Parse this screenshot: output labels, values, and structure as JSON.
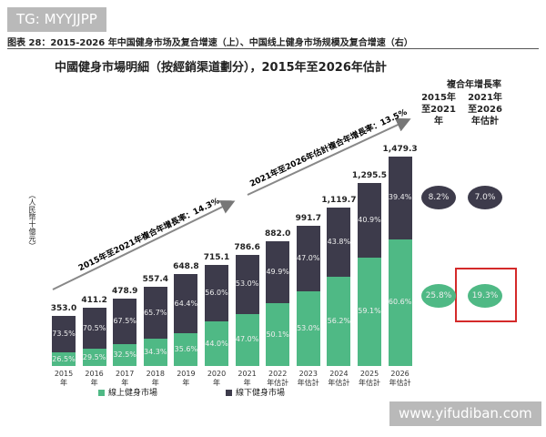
{
  "header": {
    "watermark": "TG: MYYJJPP",
    "caption": "图表 28：2015-2026 年中国健身市场及复合增速（上）、中国线上健身市场规模及复合增速（右）"
  },
  "chart_data": {
    "type": "stacked_bar",
    "title": "中國健身市場明細（按經銷渠道劃分），2015年至2026年估計",
    "y_label": "（人民幣十億元）",
    "categories": [
      "2015年",
      "2016年",
      "2017年",
      "2018年",
      "2019年",
      "2020年",
      "2021年",
      "2022年估計",
      "2023年估計",
      "2024年估計",
      "2025年估計",
      "2026年估計"
    ],
    "totals": {
      "values": [
        353.0,
        411.2,
        478.9,
        557.4,
        648.8,
        715.1,
        786.6,
        882.0,
        991.7,
        1119.7,
        1295.5,
        1479.3
      ],
      "value_labels": [
        "353.0",
        "411.2",
        "478.9",
        "557.4",
        "648.8",
        "715.1",
        "786.6",
        "882.0",
        "991.7",
        "1,119.7",
        "1,295.5",
        "1,479.3"
      ]
    },
    "series": [
      {
        "name": "線上健身市場",
        "color": "#4fb985",
        "values": [
          26.5,
          29.5,
          32.5,
          34.3,
          35.6,
          44.0,
          47.0,
          50.1,
          53.0,
          56.2,
          59.1,
          60.6
        ],
        "value_labels": [
          "26.5%",
          "29.5%",
          "32.5%",
          "34.3%",
          "35.6%",
          "44.0%",
          "47.0%",
          "50.1%",
          "53.0%",
          "56.2%",
          "59.1%",
          "60.6%"
        ]
      },
      {
        "name": "線下健身市場",
        "color": "#3d3b4b",
        "values": [
          73.5,
          70.5,
          67.5,
          65.7,
          64.4,
          56.0,
          53.0,
          49.9,
          47.0,
          43.8,
          40.9,
          39.4
        ],
        "value_labels": [
          "73.5%",
          "70.5%",
          "67.5%",
          "65.7%",
          "64.4%",
          "56.0%",
          "53.0%",
          "49.9%",
          "47.0%",
          "43.8%",
          "40.9%",
          "39.4%"
        ]
      }
    ],
    "annotations": [
      "2015年至2021年複合年增長率：14.3%",
      "2021年至2026年估計複合年增長率：13.5%"
    ],
    "cagr": {
      "title": "複合年增長率",
      "columns": [
        "2015年至2021年",
        "2021年至2026年估計"
      ],
      "rows": [
        {
          "values": [
            8.2,
            7.0
          ],
          "value_labels": [
            "8.2%",
            "7.0%"
          ]
        },
        {
          "values": [
            25.8,
            19.3
          ],
          "value_labels": [
            "25.8%",
            "19.3%"
          ]
        }
      ]
    }
  },
  "footer_watermark": "www.yifudiban.com"
}
